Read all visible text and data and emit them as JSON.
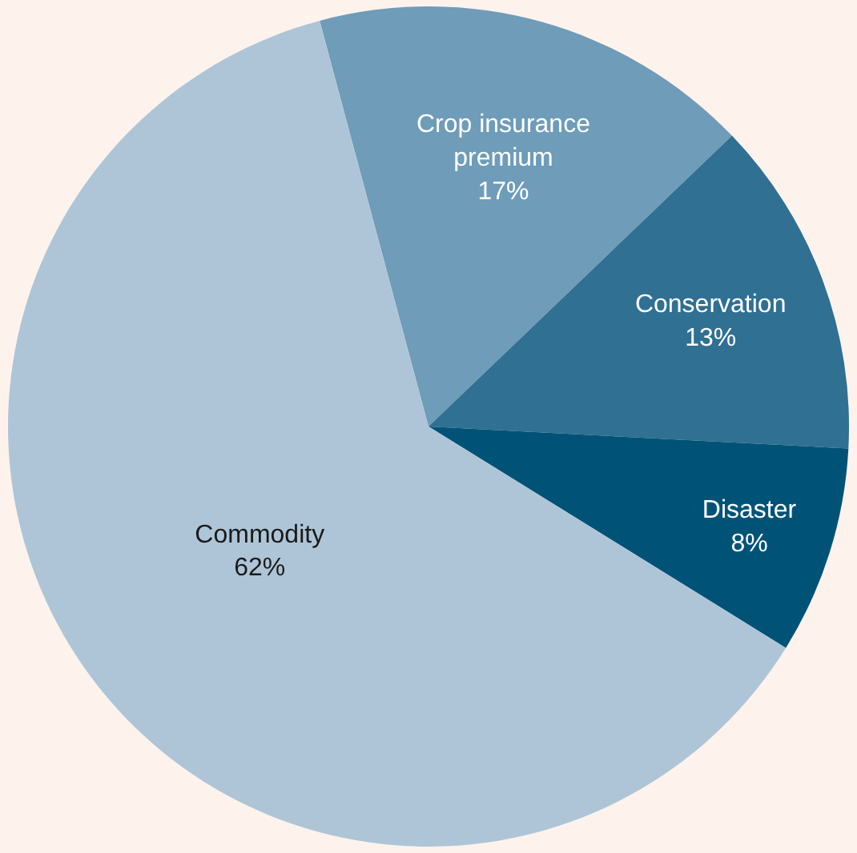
{
  "chart_data": {
    "type": "pie",
    "categories": [
      "Crop insurance premium",
      "Conservation",
      "Disaster",
      "Commodity"
    ],
    "values": [
      17,
      13,
      8,
      62
    ],
    "value_labels": [
      "17%",
      "13%",
      "8%",
      "62%"
    ],
    "colors": [
      "#6e9cb9",
      "#2f7093",
      "#005377",
      "#aec5d8"
    ],
    "legend": false
  }
}
